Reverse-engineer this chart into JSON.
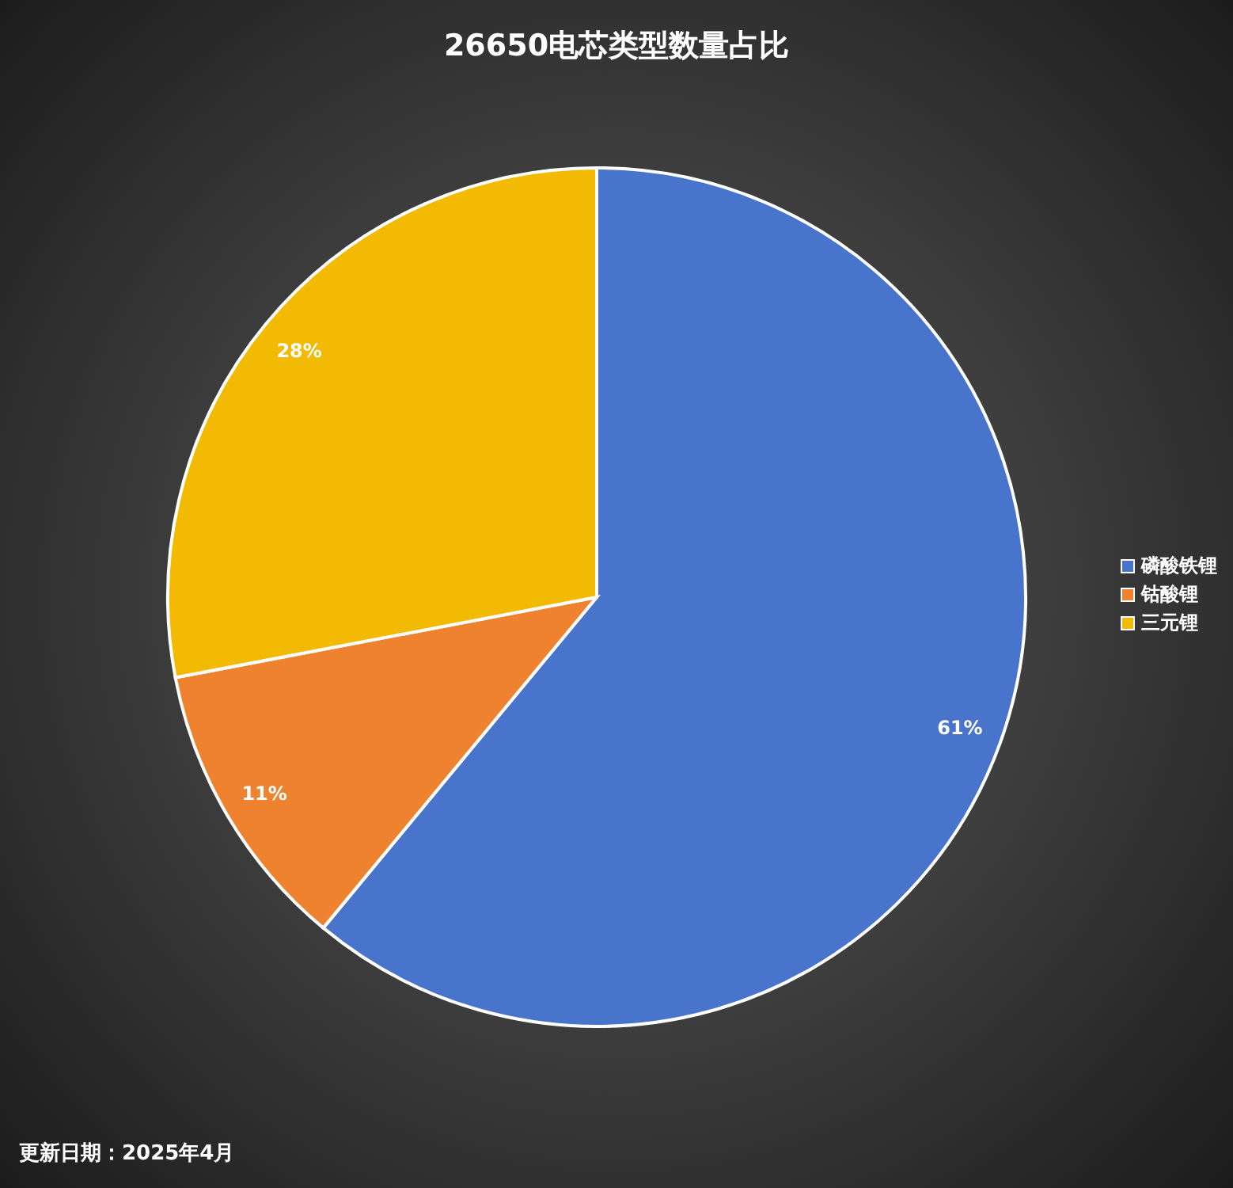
{
  "chart_data": {
    "type": "pie",
    "title": "26650电芯类型数量占比",
    "categories": [
      "磷酸铁锂",
      "钴酸锂",
      "三元锂"
    ],
    "values": [
      61,
      11,
      28
    ],
    "colors": [
      "#4874cb",
      "#ee822f",
      "#f2ba02"
    ],
    "value_labels": [
      "61%",
      "11%",
      "28%"
    ],
    "legend": "right",
    "annotations": [
      "更新日期：2025年4月"
    ]
  }
}
